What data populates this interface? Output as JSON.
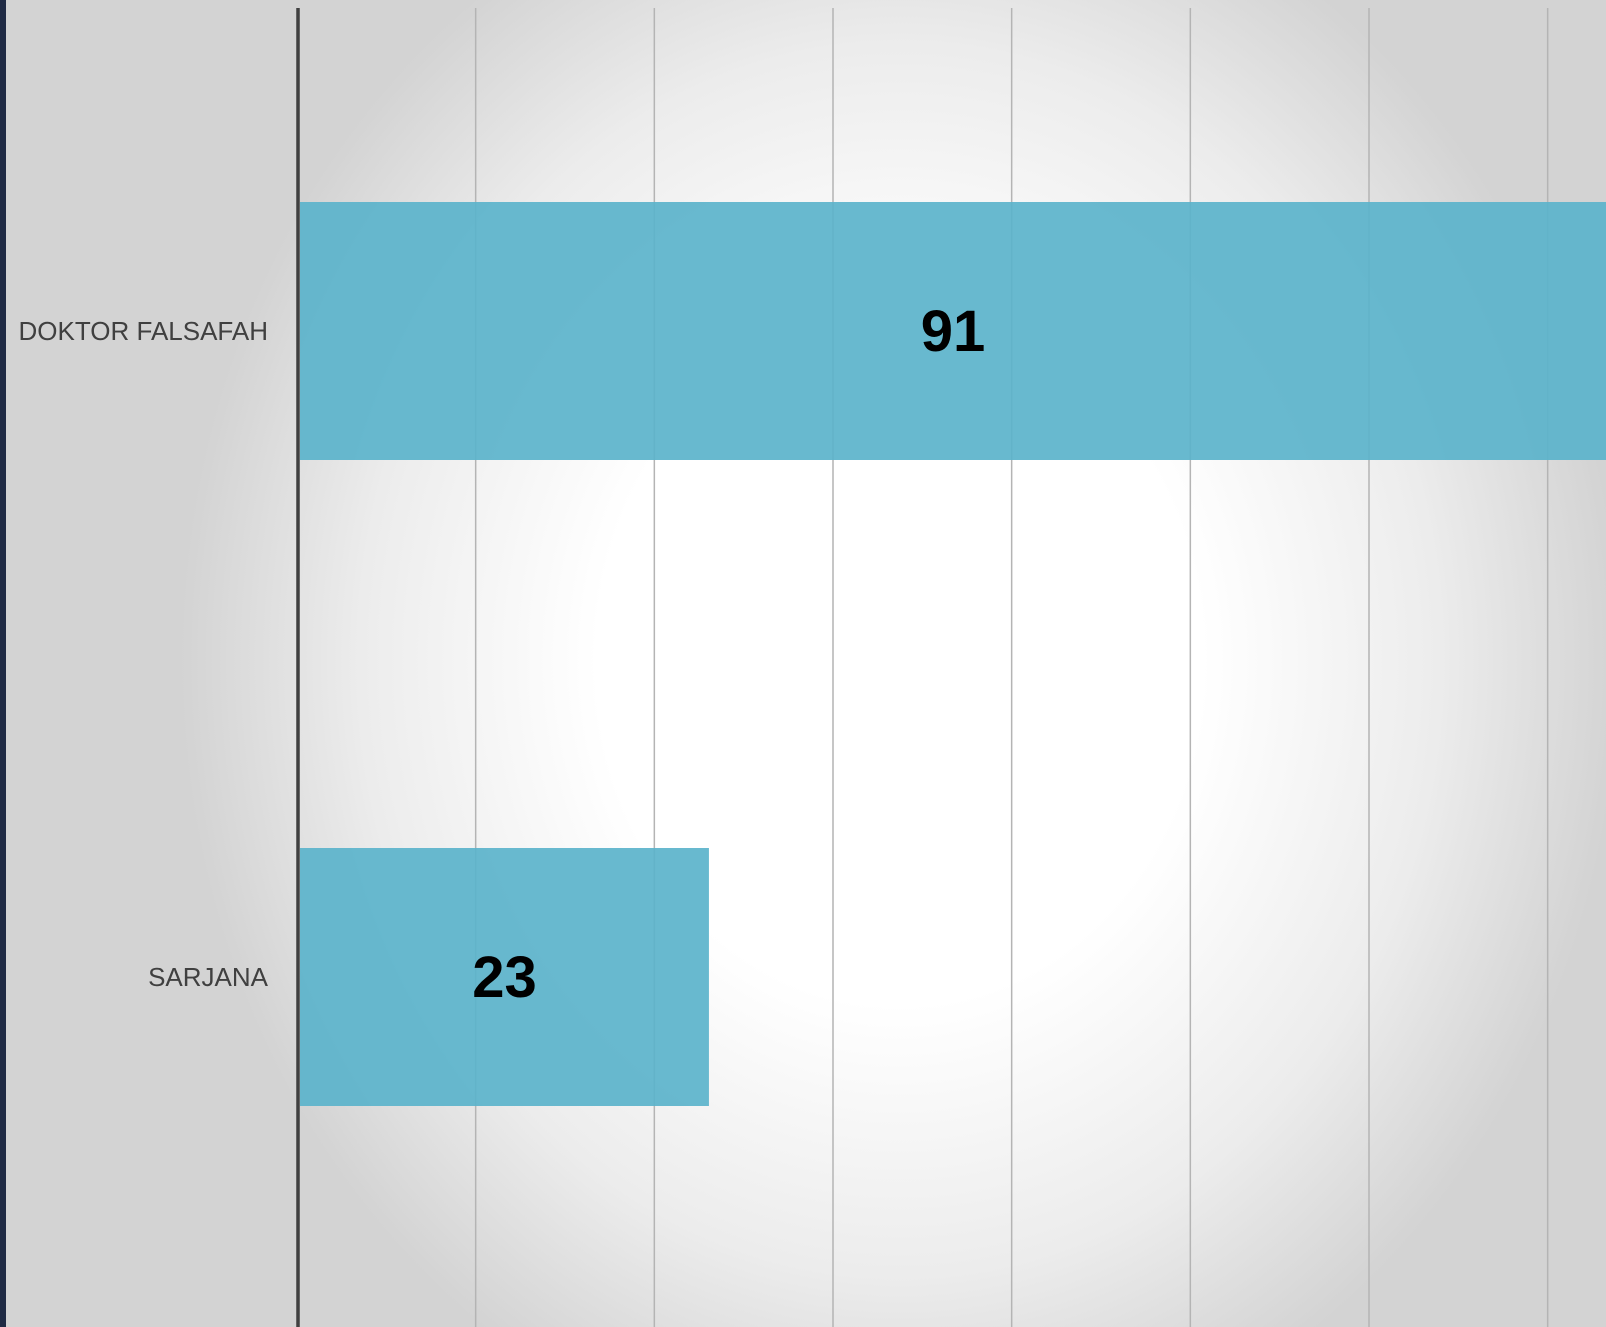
{
  "colors": {
    "bar": "#5bb3cb",
    "left_strip": "#1f2a44",
    "axis": "#404040",
    "grid": "#b4b4b4"
  },
  "chart_data": {
    "type": "bar",
    "orientation": "horizontal",
    "categories": [
      "DOKTOR FALSAFAH",
      "SARJANA"
    ],
    "values": [
      91,
      23
    ],
    "data_labels": [
      "91",
      "23"
    ],
    "title": "",
    "xlabel": "",
    "ylabel": "",
    "xlim": [
      0,
      90
    ],
    "grid": true,
    "legend": "none"
  }
}
